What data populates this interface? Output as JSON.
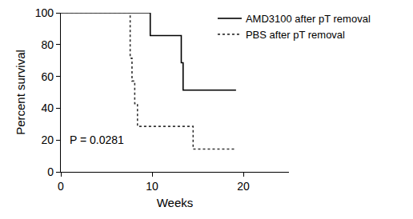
{
  "chart_data": {
    "type": "line",
    "xlabel": "Weeks",
    "ylabel": "Percent survival",
    "xlim": [
      0,
      25
    ],
    "xticks": [
      0,
      10,
      20
    ],
    "ylim": [
      0,
      100
    ],
    "yticks": [
      0,
      20,
      40,
      60,
      80,
      100
    ],
    "grid": false,
    "legend": "top right",
    "annotations": [
      "P = 0.0281"
    ],
    "series": [
      {
        "name": "AMD3100 after pT removal",
        "color": "#000000",
        "line_style": "solid",
        "x": [
          0,
          9.8,
          13.2,
          13.4,
          19.2
        ],
        "values": [
          100,
          85.7,
          68.6,
          51.4,
          51.4
        ]
      },
      {
        "name": "PBS after pT removal",
        "color": "#333333",
        "line_style": "dotted",
        "x": [
          0,
          7.6,
          7.8,
          8.1,
          8.4,
          14.5,
          19.2
        ],
        "values": [
          100,
          71.4,
          57.1,
          42.9,
          28.6,
          14.3,
          14.3
        ]
      }
    ]
  }
}
